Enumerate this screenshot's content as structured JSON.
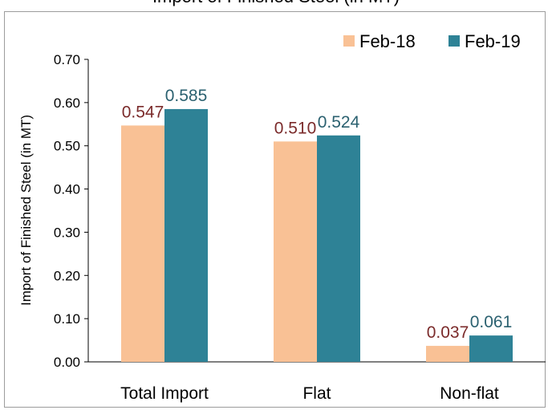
{
  "chart_data": {
    "type": "bar",
    "title": "Import of Finished Steel (in MT)",
    "xlabel": "",
    "ylabel": "Import of Finished Steel (in MT)",
    "categories": [
      "Total Import",
      "Flat",
      "Non-flat"
    ],
    "series": [
      {
        "name": "Feb-18",
        "values": [
          0.547,
          0.51,
          0.037
        ],
        "labels": [
          "0.547",
          "0.510",
          "0.037"
        ],
        "color": "#f9c195",
        "label_color": "#7b2b2b"
      },
      {
        "name": "Feb-19",
        "values": [
          0.585,
          0.524,
          0.061
        ],
        "labels": [
          "0.585",
          "0.524",
          "0.061"
        ],
        "color": "#2e8296",
        "label_color": "#2b6170"
      }
    ],
    "ylim": [
      0,
      0.7
    ],
    "yticks": [
      "0.00",
      "0.10",
      "0.20",
      "0.30",
      "0.40",
      "0.50",
      "0.60",
      "0.70"
    ],
    "grid": false,
    "legend": "top-right"
  }
}
